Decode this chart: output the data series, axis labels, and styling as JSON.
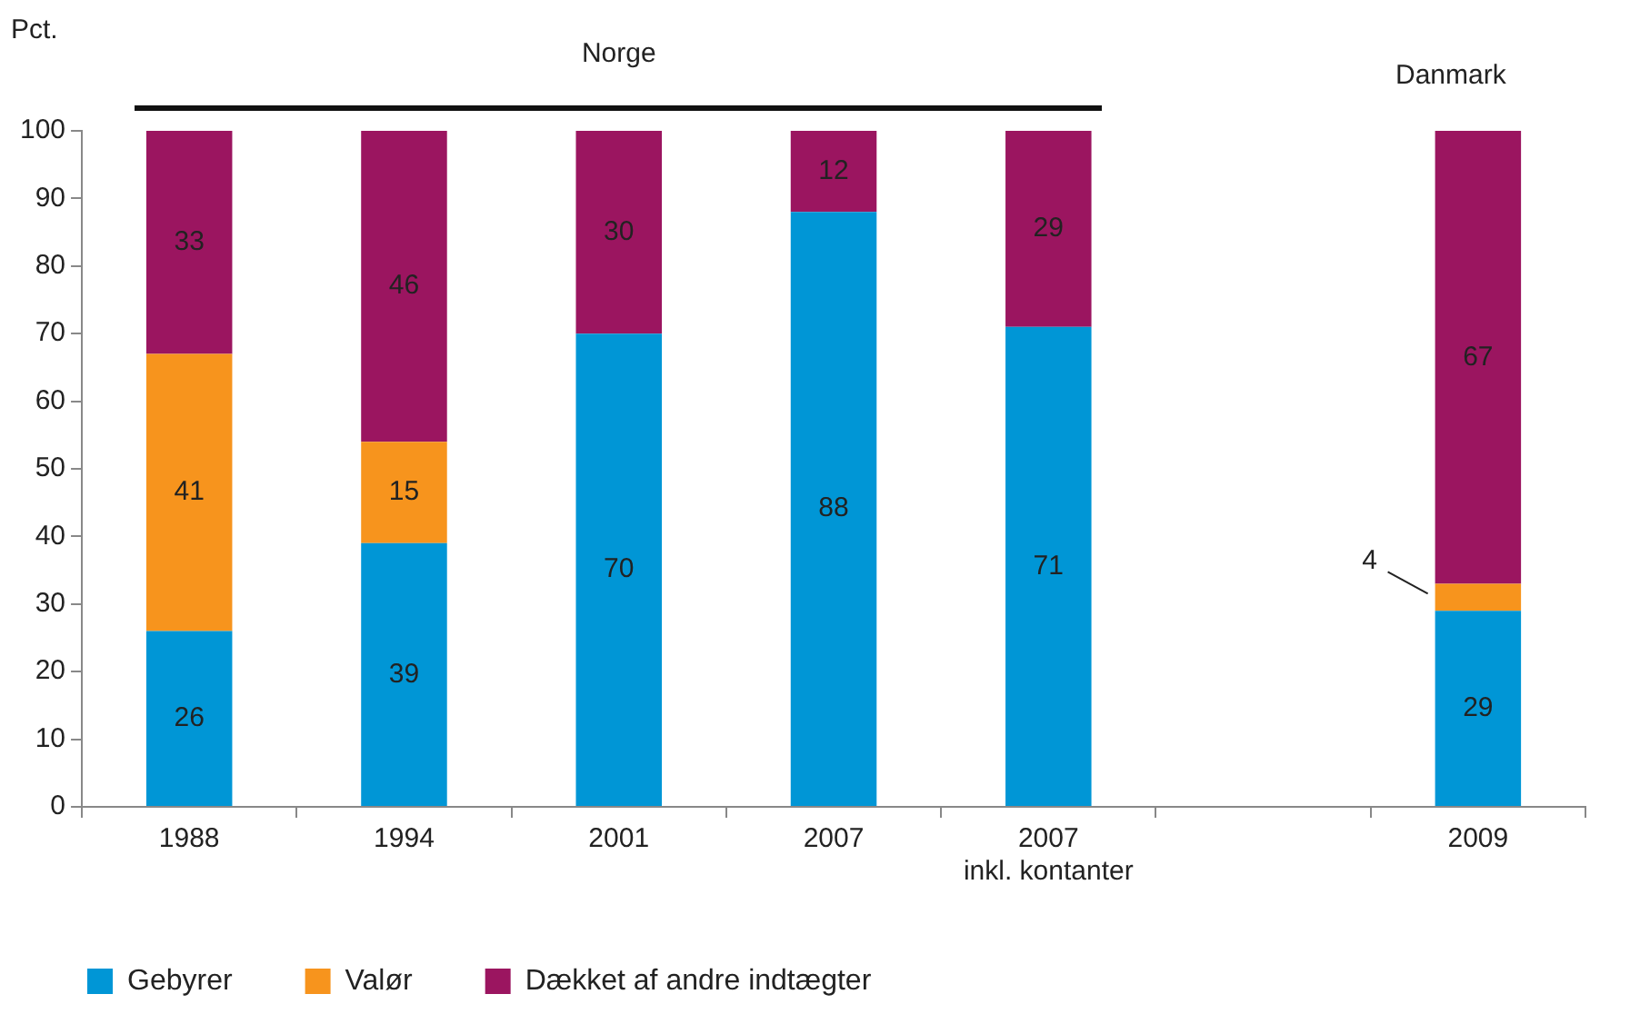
{
  "chart_data": {
    "type": "bar",
    "stacked": true,
    "ylabel": "Pct.",
    "categories": [
      "1988",
      "1994",
      "2001",
      "2007",
      "2007\ninkl. kontanter",
      null,
      "2009"
    ],
    "series": [
      {
        "name": "Gebyrer",
        "color": "#0096d6",
        "values": [
          26,
          39,
          70,
          88,
          71,
          null,
          29
        ]
      },
      {
        "name": "Valør",
        "color": "#f7941d",
        "values": [
          41,
          15,
          null,
          null,
          null,
          null,
          4
        ]
      },
      {
        "name": "Dækket af andre indtægter",
        "color": "#9b1560",
        "values": [
          33,
          46,
          30,
          12,
          29,
          null,
          67
        ]
      }
    ],
    "ylim": [
      0,
      100
    ],
    "yticks": [
      0,
      10,
      20,
      30,
      40,
      50,
      60,
      70,
      80,
      90,
      100
    ],
    "grid": false,
    "legend": "bottom",
    "data_labels": true,
    "annotations": [
      "Norge",
      "Danmark"
    ]
  }
}
